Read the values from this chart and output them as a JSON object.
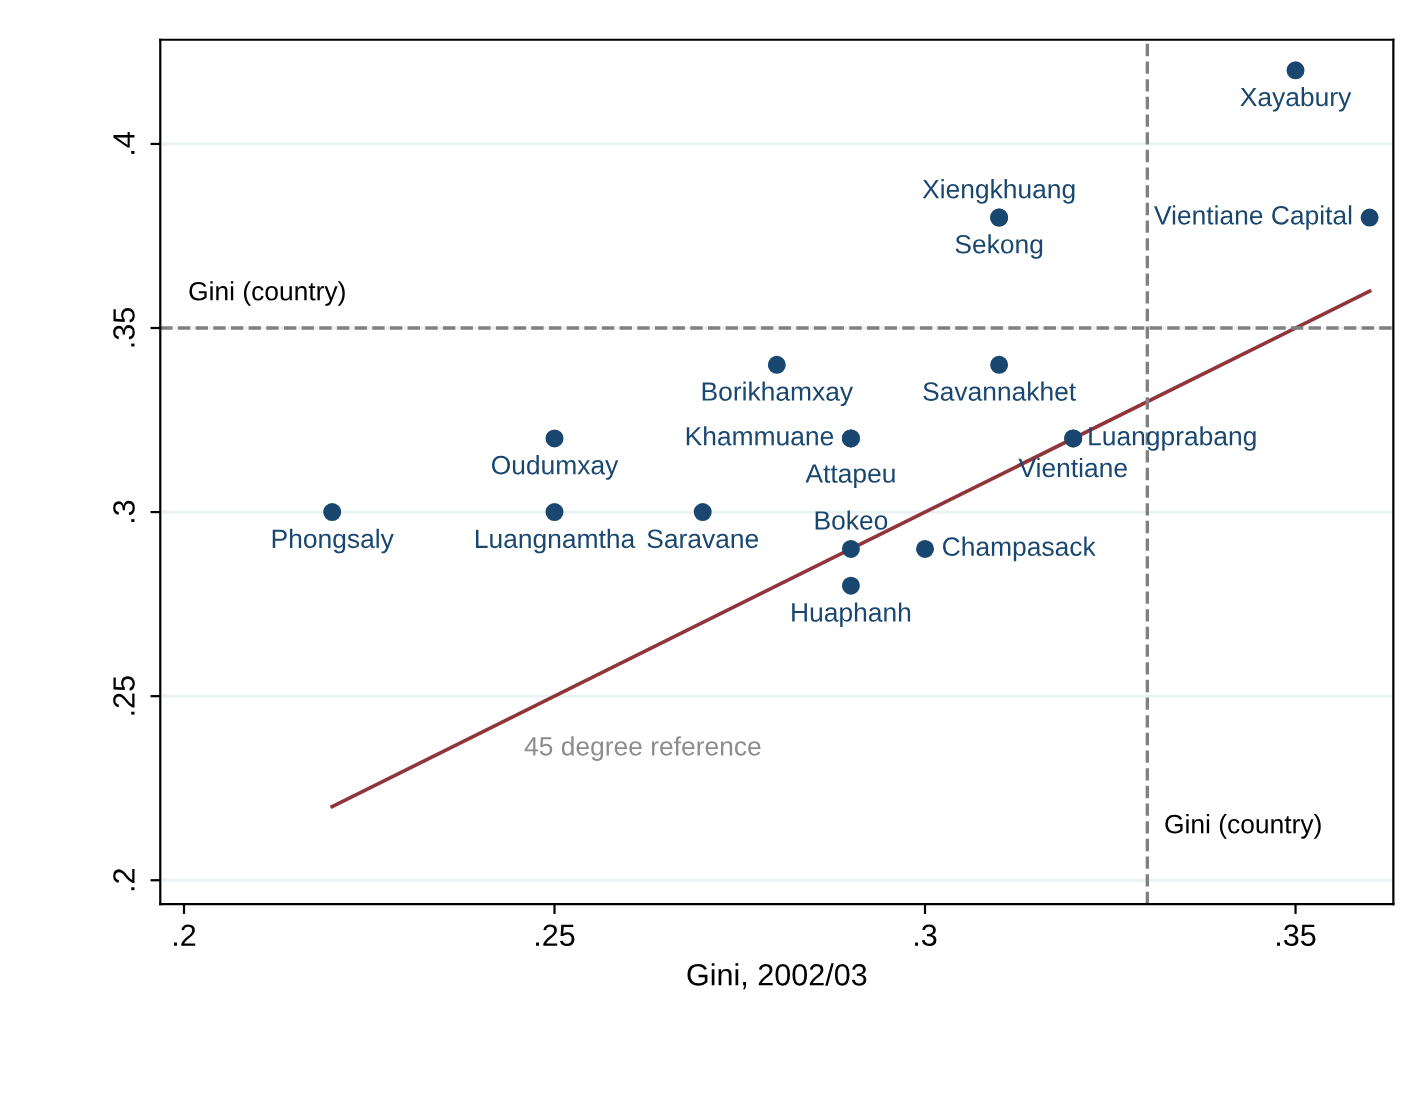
{
  "chart_data": {
    "type": "scatter",
    "xlabel": "Gini, 2002/03",
    "xlim": [
      0.1968,
      0.3632
    ],
    "ylim": [
      0.1935,
      0.4283
    ],
    "xticks": [
      {
        "value": 0.2,
        "label": ".2"
      },
      {
        "value": 0.25,
        "label": ".25"
      },
      {
        "value": 0.3,
        "label": ".3"
      },
      {
        "value": 0.35,
        "label": ".35"
      }
    ],
    "yticks": [
      {
        "value": 0.2,
        "label": ".2"
      },
      {
        "value": 0.25,
        "label": ".25"
      },
      {
        "value": 0.3,
        "label": ".3"
      },
      {
        "value": 0.35,
        "label": ".35"
      },
      {
        "value": 0.4,
        "label": ".4"
      }
    ],
    "grid": "y",
    "legend": false,
    "marker": "circle",
    "series": [
      {
        "color": "#1a476f",
        "x": [
          0.22,
          0.25,
          0.25,
          0.27,
          0.28,
          0.29,
          0.29,
          0.29,
          0.29,
          0.3,
          0.31,
          0.31,
          0.31,
          0.32,
          0.32,
          0.35,
          0.36
        ],
        "values": [
          0.3,
          0.32,
          0.3,
          0.3,
          0.34,
          0.32,
          0.32,
          0.29,
          0.28,
          0.29,
          0.38,
          0.38,
          0.34,
          0.32,
          0.32,
          0.42,
          0.38
        ],
        "value_labels": [
          "Phongsaly",
          "Oudumxay",
          "Luangnamtha",
          "Saravane",
          "Borikhamxay",
          "Khammuane",
          "Attapeu",
          "Bokeo",
          "Huaphanh",
          "Champasack",
          "Xiengkhuang",
          "Sekong",
          "Savannakhet",
          "Luangprabang",
          "Vientiane",
          "Xayabury",
          "Vientiane Capital"
        ]
      },
      {
        "type": "line",
        "marker": "none",
        "color": "#90353b",
        "x": [
          0.22,
          0.36
        ],
        "values": [
          0.22,
          0.36
        ]
      }
    ],
    "ref_lines": [
      {
        "axis": "y",
        "value": 0.35,
        "label": "Gini (country)",
        "color": "#808080",
        "line_style": "dashed"
      },
      {
        "axis": "x",
        "value": 0.33,
        "label": "Gini (country)",
        "color": "#808080",
        "line_style": "dashed"
      }
    ],
    "annotations": [
      "45 degree reference"
    ]
  }
}
